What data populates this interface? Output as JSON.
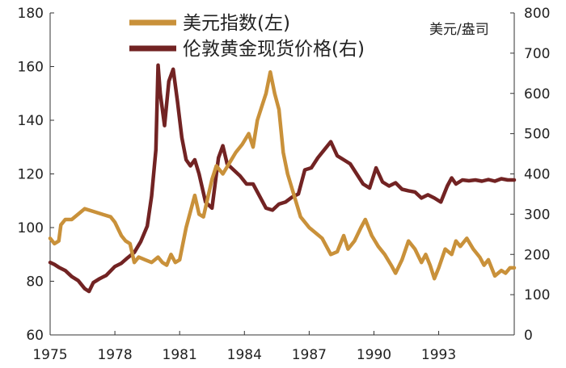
{
  "chart_data": {
    "type": "line",
    "title": "",
    "xlabel": "",
    "ylabel_left": "",
    "ylabel_right": "美元/盎司",
    "x_ticks": [
      "1975",
      "1978",
      "1981",
      "1984",
      "1987",
      "1990",
      "1993"
    ],
    "xlim": [
      1975,
      1996.5
    ],
    "ylim_left": [
      60,
      180
    ],
    "ylim_right": [
      0,
      800
    ],
    "y_ticks_left": [
      "60",
      "80",
      "100",
      "120",
      "140",
      "160",
      "180"
    ],
    "y_ticks_right": [
      "0",
      "100",
      "200",
      "300",
      "400",
      "500",
      "600",
      "700",
      "800"
    ],
    "legend_position": "top-center",
    "grid": false,
    "series": [
      {
        "name": "美元指数(左)",
        "axis": "left",
        "color": "#C9913A",
        "points": [
          [
            1975.0,
            96
          ],
          [
            1975.2,
            94
          ],
          [
            1975.4,
            95
          ],
          [
            1975.5,
            101
          ],
          [
            1975.7,
            103
          ],
          [
            1976.0,
            103
          ],
          [
            1976.3,
            105
          ],
          [
            1976.6,
            107
          ],
          [
            1977.0,
            106
          ],
          [
            1977.4,
            105
          ],
          [
            1977.8,
            104
          ],
          [
            1978.0,
            102
          ],
          [
            1978.3,
            97
          ],
          [
            1978.5,
            95
          ],
          [
            1978.7,
            94
          ],
          [
            1978.9,
            87
          ],
          [
            1979.1,
            89
          ],
          [
            1979.4,
            88
          ],
          [
            1979.7,
            87
          ],
          [
            1980.0,
            89
          ],
          [
            1980.2,
            87
          ],
          [
            1980.4,
            86
          ],
          [
            1980.6,
            90
          ],
          [
            1980.8,
            87
          ],
          [
            1981.0,
            88
          ],
          [
            1981.3,
            100
          ],
          [
            1981.6,
            109
          ],
          [
            1981.7,
            112
          ],
          [
            1981.9,
            105
          ],
          [
            1982.1,
            104
          ],
          [
            1982.3,
            111
          ],
          [
            1982.5,
            118
          ],
          [
            1982.7,
            123
          ],
          [
            1983.0,
            120
          ],
          [
            1983.3,
            124
          ],
          [
            1983.6,
            128
          ],
          [
            1983.9,
            131
          ],
          [
            1984.2,
            135
          ],
          [
            1984.4,
            130
          ],
          [
            1984.6,
            140
          ],
          [
            1984.8,
            145
          ],
          [
            1985.0,
            150
          ],
          [
            1985.2,
            158
          ],
          [
            1985.4,
            150
          ],
          [
            1985.6,
            144
          ],
          [
            1985.8,
            128
          ],
          [
            1986.0,
            120
          ],
          [
            1986.3,
            112
          ],
          [
            1986.6,
            104
          ],
          [
            1987.0,
            100
          ],
          [
            1987.3,
            98
          ],
          [
            1987.6,
            96
          ],
          [
            1988.0,
            90
          ],
          [
            1988.3,
            91
          ],
          [
            1988.6,
            97
          ],
          [
            1988.8,
            92
          ],
          [
            1989.1,
            95
          ],
          [
            1989.4,
            100
          ],
          [
            1989.6,
            103
          ],
          [
            1989.9,
            97
          ],
          [
            1990.2,
            93
          ],
          [
            1990.5,
            90
          ],
          [
            1990.8,
            86
          ],
          [
            1991.0,
            83
          ],
          [
            1991.3,
            88
          ],
          [
            1991.6,
            95
          ],
          [
            1991.9,
            92
          ],
          [
            1992.2,
            87
          ],
          [
            1992.4,
            90
          ],
          [
            1992.6,
            86
          ],
          [
            1992.8,
            81
          ],
          [
            1993.0,
            85
          ],
          [
            1993.3,
            92
          ],
          [
            1993.6,
            90
          ],
          [
            1993.8,
            95
          ],
          [
            1994.0,
            93
          ],
          [
            1994.3,
            96
          ],
          [
            1994.6,
            92
          ],
          [
            1994.9,
            89
          ],
          [
            1995.1,
            86
          ],
          [
            1995.3,
            88
          ],
          [
            1995.6,
            82
          ],
          [
            1995.9,
            84
          ],
          [
            1996.1,
            83
          ],
          [
            1996.3,
            85
          ],
          [
            1996.5,
            85
          ]
        ]
      },
      {
        "name": "伦敦黄金现货价格(右)",
        "axis": "right",
        "color": "#722323",
        "points": [
          [
            1975.0,
            180
          ],
          [
            1975.2,
            175
          ],
          [
            1975.4,
            168
          ],
          [
            1975.7,
            160
          ],
          [
            1976.0,
            145
          ],
          [
            1976.3,
            135
          ],
          [
            1976.6,
            115
          ],
          [
            1976.8,
            108
          ],
          [
            1977.0,
            130
          ],
          [
            1977.3,
            140
          ],
          [
            1977.6,
            148
          ],
          [
            1978.0,
            170
          ],
          [
            1978.3,
            178
          ],
          [
            1978.6,
            192
          ],
          [
            1978.9,
            205
          ],
          [
            1979.2,
            232
          ],
          [
            1979.5,
            270
          ],
          [
            1979.7,
            345
          ],
          [
            1979.9,
            460
          ],
          [
            1980.0,
            670
          ],
          [
            1980.1,
            600
          ],
          [
            1980.3,
            520
          ],
          [
            1980.5,
            630
          ],
          [
            1980.7,
            660
          ],
          [
            1980.9,
            580
          ],
          [
            1981.1,
            490
          ],
          [
            1981.3,
            435
          ],
          [
            1981.5,
            420
          ],
          [
            1981.7,
            435
          ],
          [
            1981.9,
            400
          ],
          [
            1982.2,
            330
          ],
          [
            1982.5,
            315
          ],
          [
            1982.8,
            440
          ],
          [
            1983.0,
            470
          ],
          [
            1983.2,
            425
          ],
          [
            1983.5,
            410
          ],
          [
            1983.8,
            395
          ],
          [
            1984.1,
            375
          ],
          [
            1984.4,
            375
          ],
          [
            1984.7,
            345
          ],
          [
            1985.0,
            315
          ],
          [
            1985.3,
            310
          ],
          [
            1985.6,
            325
          ],
          [
            1985.9,
            330
          ],
          [
            1986.2,
            342
          ],
          [
            1986.5,
            350
          ],
          [
            1986.8,
            410
          ],
          [
            1987.1,
            415
          ],
          [
            1987.4,
            440
          ],
          [
            1987.7,
            460
          ],
          [
            1988.0,
            480
          ],
          [
            1988.3,
            445
          ],
          [
            1988.6,
            435
          ],
          [
            1988.9,
            425
          ],
          [
            1989.2,
            400
          ],
          [
            1989.5,
            375
          ],
          [
            1989.8,
            365
          ],
          [
            1990.1,
            415
          ],
          [
            1990.4,
            380
          ],
          [
            1990.7,
            370
          ],
          [
            1991.0,
            378
          ],
          [
            1991.3,
            362
          ],
          [
            1991.6,
            358
          ],
          [
            1991.9,
            355
          ],
          [
            1992.2,
            340
          ],
          [
            1992.5,
            348
          ],
          [
            1992.8,
            340
          ],
          [
            1993.1,
            330
          ],
          [
            1993.4,
            370
          ],
          [
            1993.6,
            390
          ],
          [
            1993.8,
            375
          ],
          [
            1994.1,
            385
          ],
          [
            1994.4,
            383
          ],
          [
            1994.7,
            385
          ],
          [
            1995.0,
            382
          ],
          [
            1995.3,
            386
          ],
          [
            1995.6,
            382
          ],
          [
            1995.9,
            388
          ],
          [
            1996.2,
            385
          ],
          [
            1996.5,
            385
          ]
        ]
      }
    ]
  }
}
